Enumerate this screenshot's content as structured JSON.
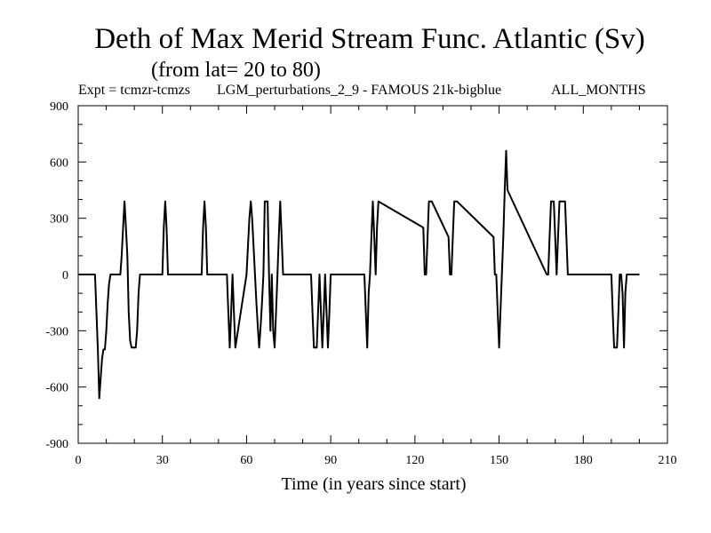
{
  "chart_data": {
    "type": "line",
    "title": "Deth of Max Merid Stream Func. Atlantic (Sv)",
    "subtitle": "(from lat= 20 to 80)",
    "expt_label": "Expt = tcmzr-tcmzs",
    "experiment_name": "LGM_perturbations_2_9 - FAMOUS 21k-bigblue",
    "months_label": "ALL_MONTHS",
    "xlabel": "Time (in years since start)",
    "ylabel": "",
    "xlim": [
      0,
      210
    ],
    "ylim": [
      -900,
      900
    ],
    "xticks": [
      0,
      30,
      60,
      90,
      120,
      150,
      180,
      210
    ],
    "yticks": [
      -900,
      -600,
      -300,
      0,
      300,
      600,
      900
    ],
    "xtick_labels": [
      "0",
      "30",
      "60",
      "90",
      "120",
      "150",
      "180",
      "210"
    ],
    "ytick_labels": [
      "-900",
      "-600",
      "-300",
      "0",
      "300",
      "600",
      "900"
    ],
    "series": [
      {
        "name": "Deth of Max Merid Stream Func.",
        "x": [
          0,
          6,
          6.5,
          7,
          7.5,
          8,
          8.5,
          9,
          9.5,
          10,
          10.5,
          11,
          11.5,
          15,
          15.5,
          16,
          16.5,
          17,
          17.5,
          18,
          18.5,
          19,
          19.5,
          20,
          20.5,
          21,
          21.5,
          22,
          30,
          30.5,
          31,
          31.5,
          32,
          44,
          44.5,
          45,
          45.5,
          46,
          53,
          53.5,
          54,
          54.5,
          55,
          55.5,
          56,
          60,
          60.5,
          61,
          61.5,
          62,
          62.5,
          63,
          63.5,
          64,
          64.5,
          65,
          65.5,
          66,
          66.5,
          67,
          67.5,
          68,
          68.5,
          69,
          69.5,
          70,
          70.5,
          71,
          71.5,
          72,
          72.5,
          73,
          83,
          83.5,
          84,
          84.5,
          85,
          85.5,
          86,
          86.5,
          87,
          87.5,
          88,
          88.5,
          89,
          89.5,
          90,
          90.5,
          91,
          96,
          96.5,
          97,
          97.5,
          98,
          102,
          102.5,
          103,
          103.5,
          104,
          104.5,
          105,
          105.5,
          106,
          106.5,
          107,
          123,
          123.5,
          124,
          124.5,
          125,
          125.5,
          126,
          132,
          132.5,
          133,
          133.5,
          134,
          134.5,
          135,
          148,
          148.5,
          149,
          149.5,
          150,
          150.5,
          151,
          151.5,
          152,
          152.5,
          153,
          167,
          167.5,
          168,
          168.5,
          169,
          169.5,
          170,
          170.5,
          171,
          171.5,
          172,
          172.5,
          173,
          173.5,
          174,
          174.5,
          190,
          190.5,
          191,
          191.5,
          192,
          192.5,
          193,
          193.5,
          194,
          194.5,
          195,
          195.5,
          196,
          196.5,
          200
        ],
        "y": [
          0,
          0,
          -200,
          -400,
          -660,
          -550,
          -450,
          -400,
          -400,
          -300,
          -150,
          -50,
          0,
          0,
          100,
          250,
          390,
          250,
          100,
          -200,
          -350,
          -390,
          -390,
          -390,
          -390,
          -300,
          -100,
          0,
          0,
          250,
          390,
          250,
          0,
          0,
          250,
          390,
          250,
          0,
          0,
          -200,
          -390,
          -200,
          0,
          -200,
          -390,
          0,
          150,
          300,
          390,
          300,
          150,
          0,
          -150,
          -280,
          -390,
          -280,
          -150,
          0,
          390,
          390,
          390,
          0,
          -300,
          0,
          -300,
          -390,
          -200,
          0,
          200,
          390,
          200,
          0,
          0,
          -200,
          -390,
          -390,
          -390,
          -200,
          0,
          -200,
          -390,
          -200,
          0,
          -200,
          -390,
          -200,
          0,
          0,
          0,
          0,
          0,
          0,
          0,
          0,
          0,
          -200,
          -390,
          -100,
          0,
          200,
          390,
          200,
          0,
          250,
          390,
          250,
          0,
          0,
          200,
          390,
          390,
          390,
          200,
          0,
          0,
          200,
          390,
          390,
          390,
          200,
          0,
          0,
          -200,
          -390,
          -200,
          0,
          200,
          450,
          660,
          450,
          0,
          0,
          200,
          390,
          390,
          390,
          200,
          0,
          200,
          390,
          390,
          390,
          390,
          390,
          200,
          0,
          0,
          -200,
          -390,
          -390,
          -390,
          -200,
          0,
          0,
          -100,
          -390,
          -100,
          0,
          0,
          0,
          0
        ]
      }
    ]
  }
}
